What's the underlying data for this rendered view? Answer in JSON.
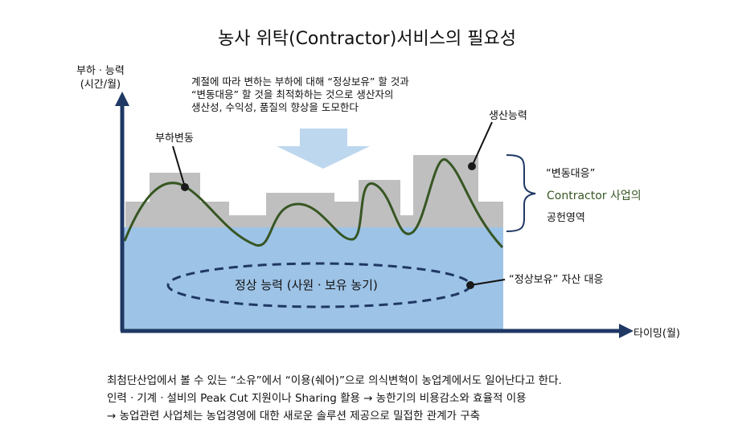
{
  "title": "농사 위탁(Contractor)서비스의 필요성",
  "y_axis_label": [
    "부하ㆍ능력",
    "(시간/월)"
  ],
  "x_axis_label": "타이밍(월)",
  "top_note": [
    "계절에 따라 변하는 부하에 대해 “정상보유” 할 것과",
    "“변동대응” 할 것을 최적화하는 것으로 생산자의",
    "생산성, 수익성, 품질의 향상을 도모한다"
  ],
  "labels": {
    "load_variation": "부하변동",
    "production_capacity": "생산능력",
    "steady_capacity": "정상 능력 (사원ㆍ보유 농기)",
    "steady_response": "“정상보유” 자산 대응"
  },
  "brace_text": {
    "line1": "“변동대응”",
    "line2": "Contractor 사업의",
    "line3": "공헌영역"
  },
  "bottom_note": [
    "최첨단산업에서 볼 수 있는 “소유”에서 “이용(쉐어)”으로 의식변혁이 농업계에서도 일어난다고 한다.",
    "인력ㆍ기계ㆍ설비의 Peak Cut 지원이나 Sharing 활용 → 농한기의 비용감소와 효율적 이용",
    "→ 농업관련 사업체는 농업경영에 대한 새로운 솔루션 제공으로 밀접한 관계가 구축"
  ],
  "colors": {
    "axis": "#1f3864",
    "steady_fill": "#9dc3e6",
    "variable_fill": "#bfbfbf",
    "load_curve": "#375623",
    "arrow_fill": "#bdd7ee",
    "green_text": "#375623"
  }
}
